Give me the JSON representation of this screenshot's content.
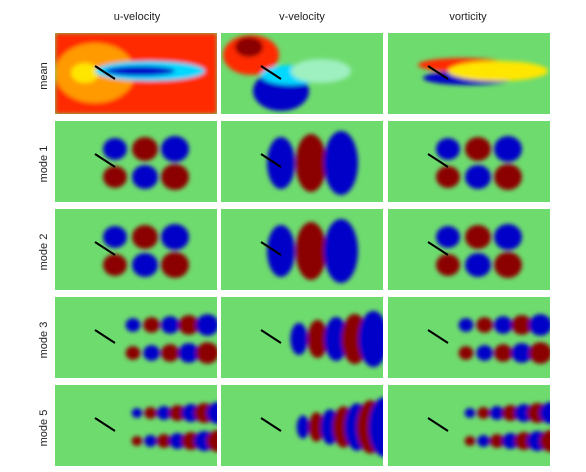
{
  "columns": [
    "u-velocity",
    "v-velocity",
    "vorticity"
  ],
  "rows": [
    "mean",
    "mode 1",
    "mode 2",
    "mode 3",
    "mode 5"
  ],
  "colors": {
    "background": "#6edb6e",
    "dark_red": "#8b0000",
    "red": "#ff2a00",
    "yellow": "#ffe600",
    "cyan": "#00d8ff",
    "blue": "#0000c8",
    "plate": "#000000"
  }
}
